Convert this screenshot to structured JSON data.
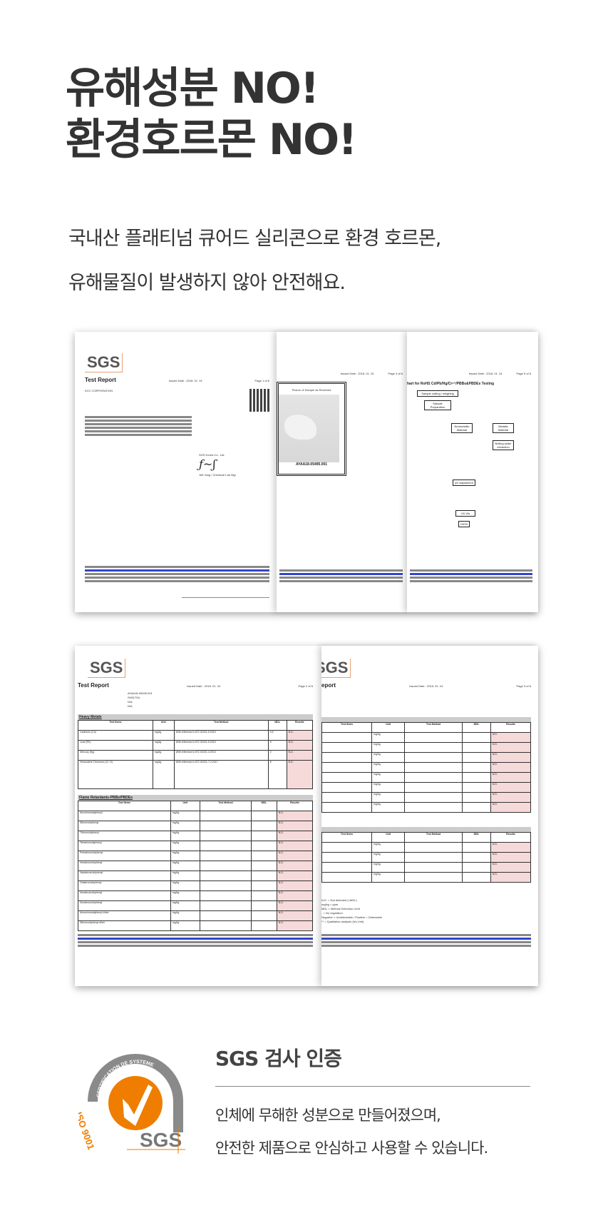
{
  "headline": {
    "line1": "유해성분 NO!",
    "line2": "환경호르몬 NO!"
  },
  "subtitle": {
    "line1": "국내산 플래티넘 큐어드 실리콘으로 환경 호르몬,",
    "line2": "유해물질이 발생하지 않아 안전해요."
  },
  "report_set_1": {
    "page1": {
      "logo": "SGS",
      "title": "Test Report",
      "issued": "Issued Date : 2018. 01. 24",
      "page": "Page 1 of 6",
      "company": "KCC CORPORATION",
      "signer_company": "SGS Korea Co., Ltd.",
      "signer": "Jeff Jang / Chemical Lab Mgr"
    },
    "page2": {
      "issued": "Issued Date : 2018. 01. 24",
      "page": "Page 4 of 6",
      "picture_caption": "Picture of Sample as Received",
      "sample_id": "AYAA18-05495.001"
    },
    "page3": {
      "issued": "Issued Date : 2018. 01. 24",
      "page": "Page 5 of 6",
      "chart_title": "hart for RoHS Cd/Pb/Hg/Cr⁶⁺/PBBs&PBDEs Testing",
      "boxes": [
        "Sample cutting / weighing",
        "Sample Preparation",
        "Nonmetallic Material",
        "Metallic Material",
        "Boiling water extraction",
        "pH adjustment",
        "UV-Vis",
        "DATA"
      ]
    }
  },
  "report_set_2": {
    "page1": {
      "logo": "SGS",
      "title": "Test Report",
      "issued": "Issued Date : 2018. 01. 24",
      "page": "Page 2 of 6",
      "sample_no": "AYAA18-05495.001",
      "sample_desc": "SH5170U",
      "item_no": "N/A",
      "materials": "N/A",
      "section1": "Heavy Metals",
      "section2": "Flame Retardants-PBBs/PBDEs",
      "headers": [
        "Test Items",
        "Unit",
        "Test Method",
        "MDL",
        "Results"
      ],
      "heavy_metals": [
        [
          "Cadmium (Cd)",
          "mg/kg",
          "With reference to IEC 62321-5:2013",
          "0.5",
          "N.D."
        ],
        [
          "Lead (Pb)",
          "mg/kg",
          "With reference to IEC 62321-5:2013",
          "5",
          "N.D."
        ],
        [
          "Mercury (Hg)",
          "mg/kg",
          "With reference to IEC 62321-4:2013",
          "2",
          "N.D."
        ],
        [
          "Hexavalent Chromium (Cr VI)",
          "mg/kg",
          "With reference to IEC 62321-7-2:2017",
          "8",
          "N.D."
        ]
      ],
      "flame_items": [
        "Monobromobiphenyl",
        "Dibromobiphenyl",
        "Tribromobiphenyl",
        "Tetrabromobiphenyl",
        "Pentabromobiphenyl",
        "Hexabromobiphenyl",
        "Heptabromobiphenyl",
        "Octabromobiphenyl",
        "Nonabromobiphenyl",
        "Decabromobiphenyl",
        "Monobromodiphenyl ether",
        "Dibromodiphenyl ether"
      ]
    },
    "page2": {
      "logo": "SGS",
      "title": "eport",
      "issued": "Issued Date : 2018. 01. 24",
      "page": "Page 3 of 6",
      "notes": [
        "N.D. = Not detected (<MDL)",
        "mg/kg = ppm",
        "MDL = Method Detection Limit",
        "- = No regulation",
        "Negative = Undetectable / Positive = Detectable",
        "** = Qualitative analysis (No Unit)"
      ]
    }
  },
  "cert": {
    "logo_ring_text": "CERTIFICATION DE SYSTEME",
    "logo_iso": "ISO 9001",
    "logo_brand": "SGS",
    "title": "SGS 검사 인증",
    "body_line1": "인체에 무해한 성분으로 만들어졌으며,",
    "body_line2": "안전한 제품으로 안심하고 사용할 수 있습니다."
  },
  "colors": {
    "text": "#333333",
    "accent_orange": "#ef7d00",
    "result_pink": "#f6d9d9"
  }
}
